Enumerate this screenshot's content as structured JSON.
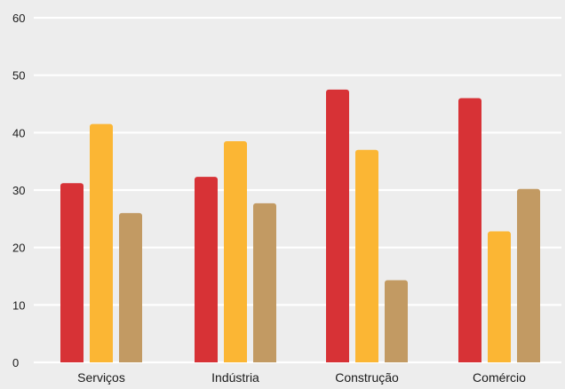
{
  "chart_data": {
    "type": "bar",
    "title": "",
    "xlabel": "",
    "ylabel": "",
    "categories": [
      "Serviços",
      "Indústria",
      "Construção",
      "Comércio"
    ],
    "series": [
      {
        "values": [
          31.2,
          32.3,
          47.5,
          46.0
        ],
        "color": "#d73236"
      },
      {
        "values": [
          41.5,
          38.5,
          37.0,
          22.8
        ],
        "color": "#fbb634"
      },
      {
        "values": [
          26.0,
          27.7,
          14.3,
          30.2
        ],
        "color": "#c29a63"
      }
    ],
    "ylim": [
      0,
      60
    ],
    "yticks": [
      0,
      10,
      20,
      30,
      40,
      50,
      60
    ],
    "grid": true,
    "legend": "none",
    "background": "#ededed"
  }
}
